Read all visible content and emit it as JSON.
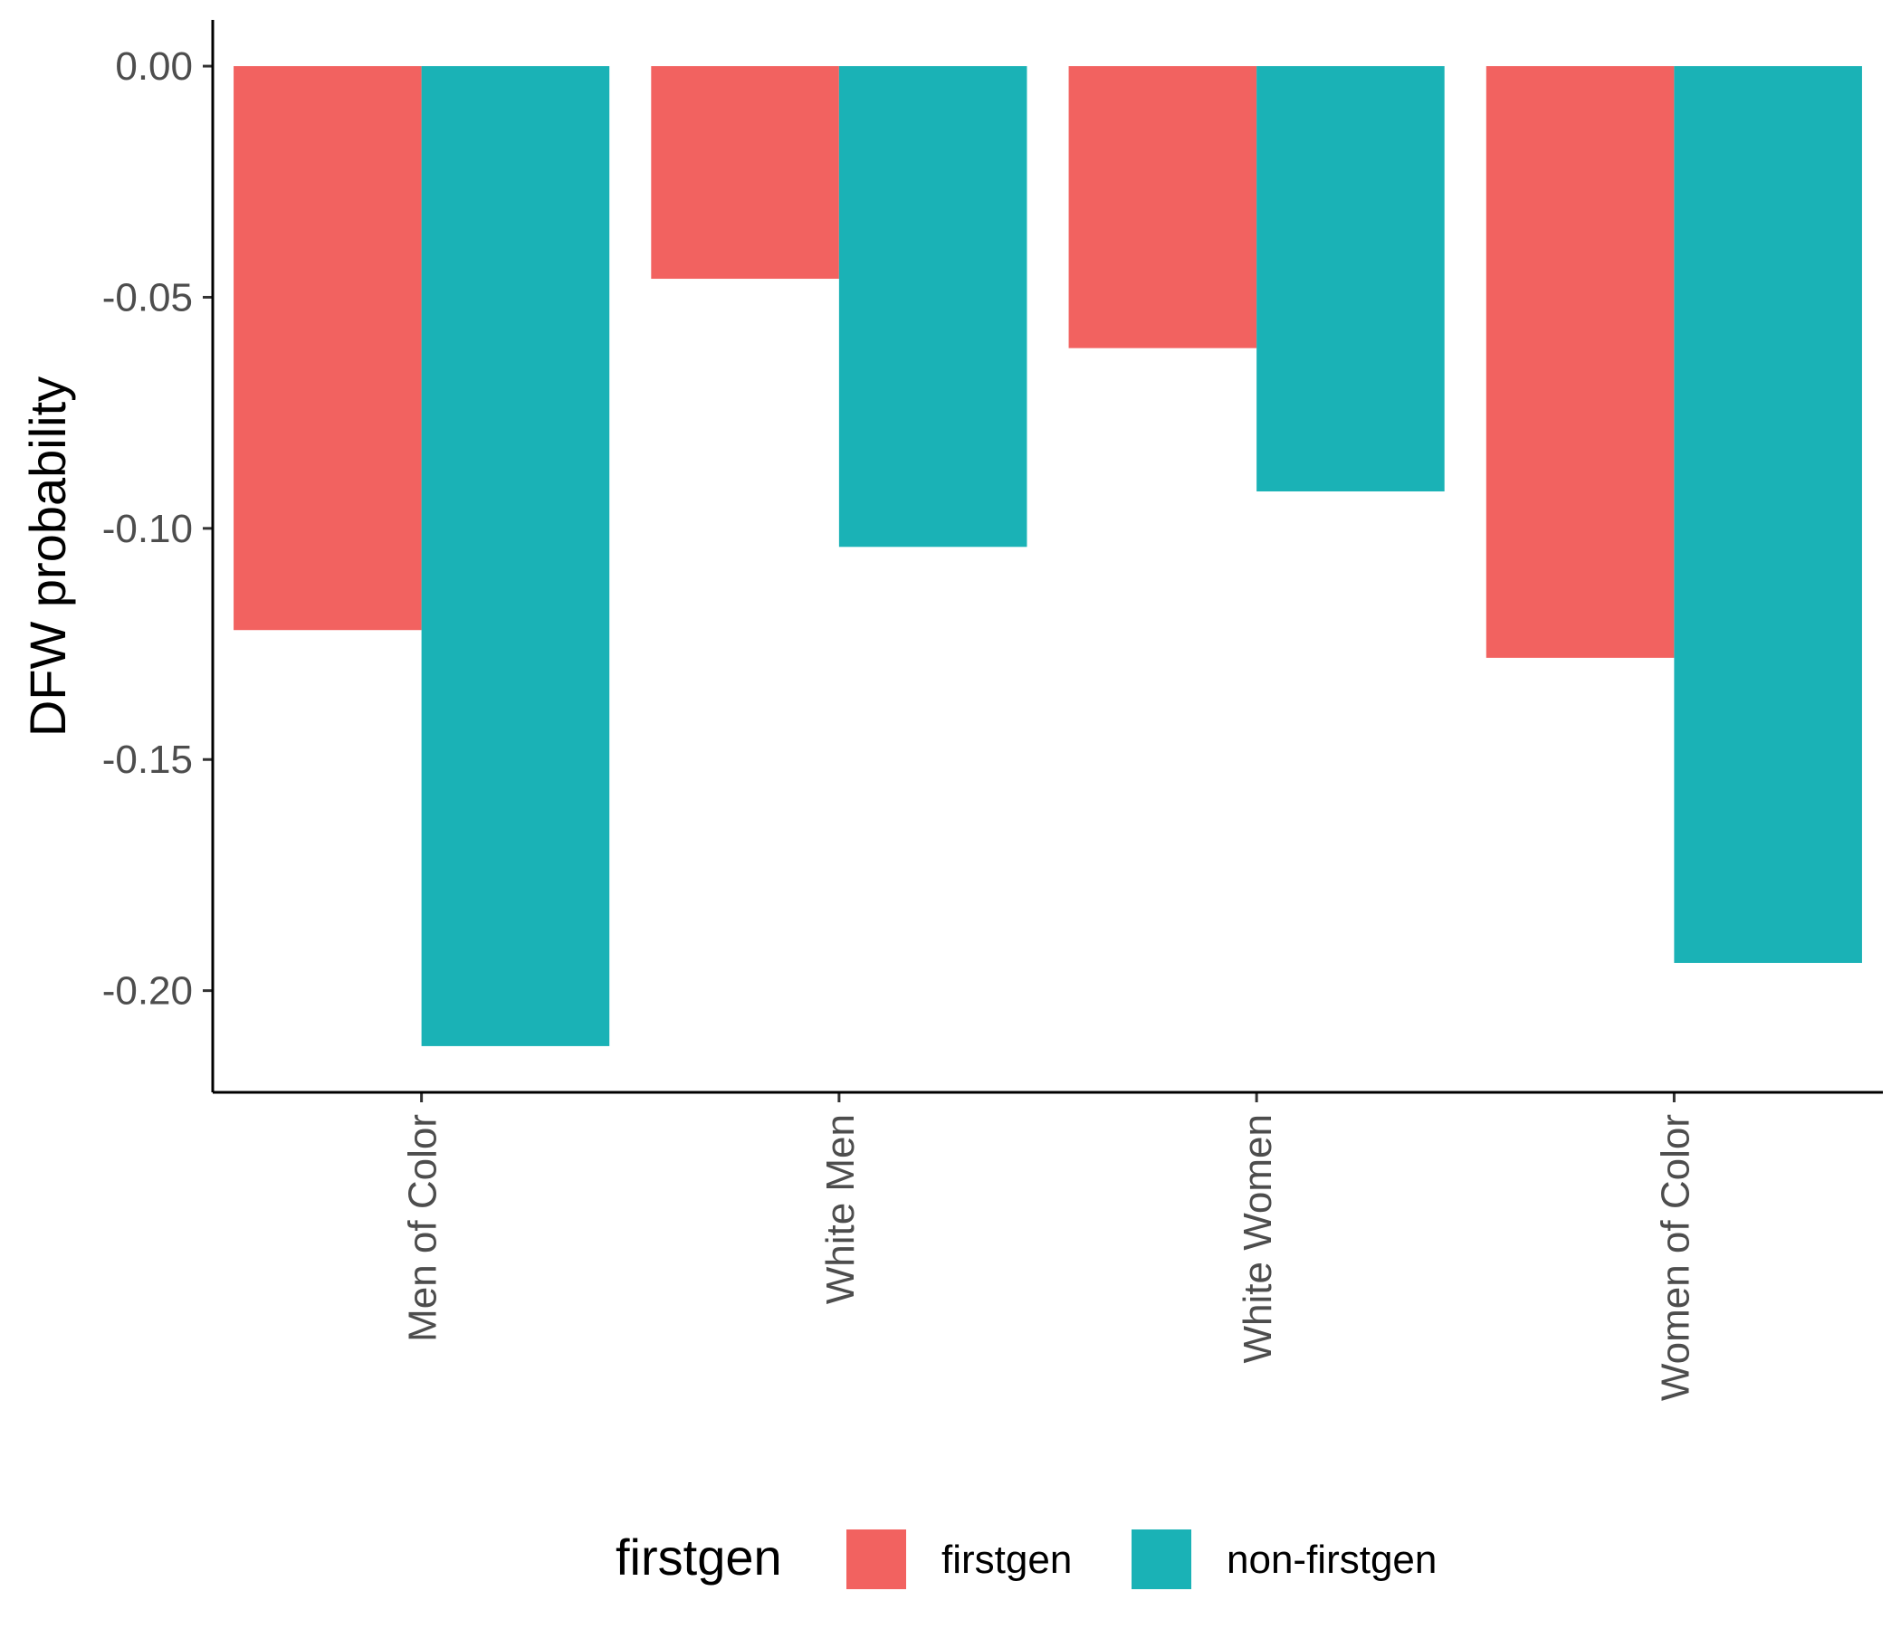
{
  "chart_data": {
    "type": "bar",
    "title": "",
    "xlabel": "",
    "ylabel": "DFW probability",
    "categories": [
      "Men of Color",
      "White Men",
      "White Women",
      "Women of Color"
    ],
    "series": [
      {
        "name": "firstgen",
        "color": "#F26260",
        "values": [
          -0.122,
          -0.046,
          -0.061,
          -0.128
        ]
      },
      {
        "name": "non-firstgen",
        "color": "#1AB2B6",
        "values": [
          -0.212,
          -0.104,
          -0.092,
          -0.194
        ]
      }
    ],
    "ylim": [
      -0.222,
      0.01
    ],
    "yticks": [
      0.0,
      -0.05,
      -0.1,
      -0.15,
      -0.2
    ],
    "ytick_labels": [
      "0.00",
      "-0.05",
      "-0.10",
      "-0.15",
      "-0.20"
    ],
    "grid": false,
    "legend": {
      "title": "firstgen",
      "position": "bottom"
    }
  }
}
